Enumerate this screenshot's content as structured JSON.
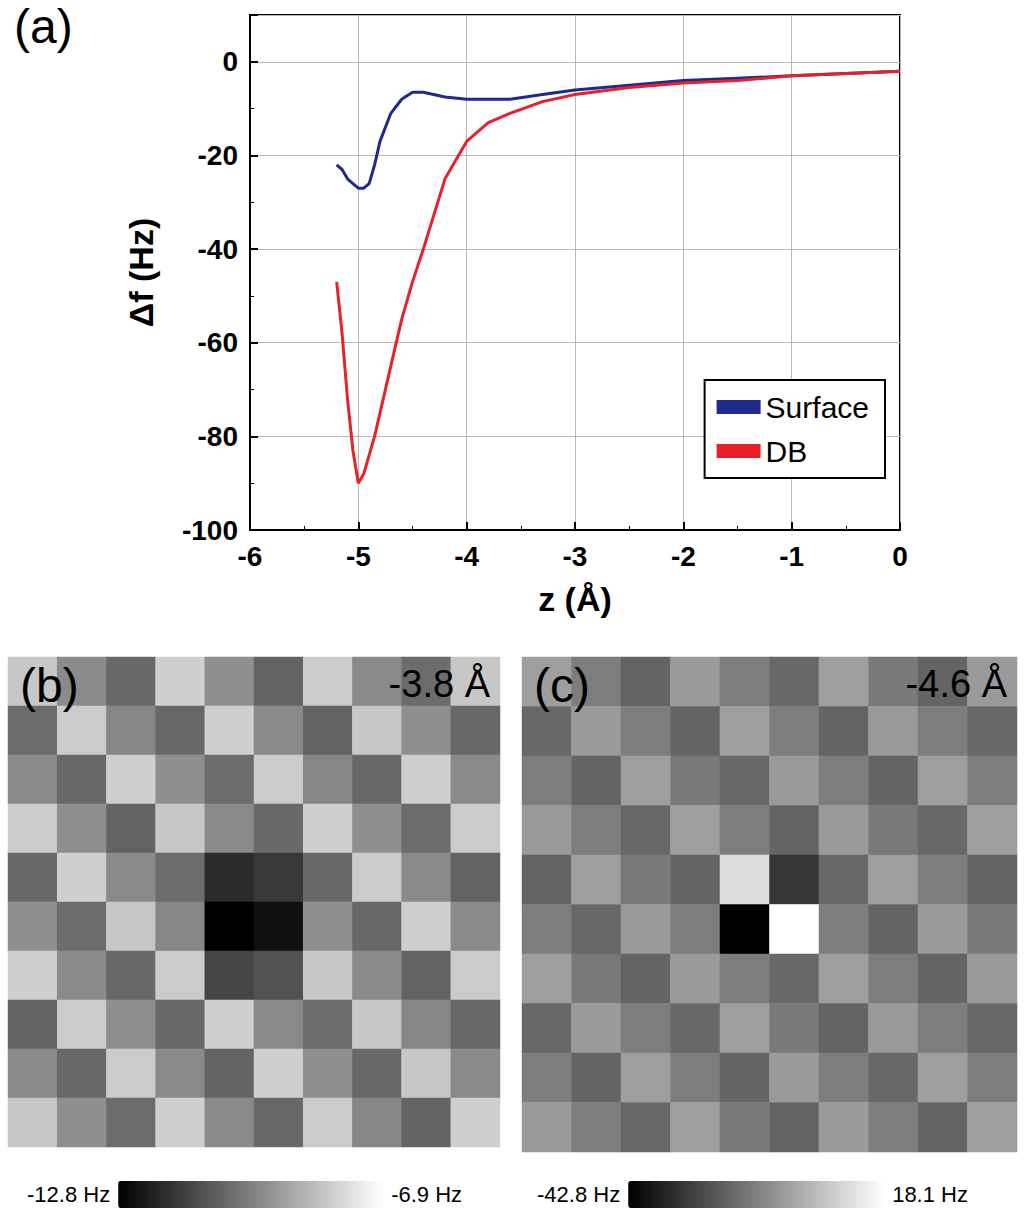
{
  "chart_data": [
    {
      "type": "line",
      "panel": "(a)",
      "x_label": "z (Å)",
      "y_label": "Δf (Hz)",
      "xlim": [
        -6,
        0
      ],
      "xticks": [
        -6,
        -5,
        -4,
        -3,
        -2,
        -1,
        0
      ],
      "ylim": [
        -100,
        10
      ],
      "yticks": [
        -100,
        -80,
        -60,
        -40,
        -20,
        0
      ],
      "grid": true,
      "legend": "lower right",
      "x": [
        0,
        -0.5,
        -1,
        -1.5,
        -2,
        -2.5,
        -3,
        -3.3,
        -3.6,
        -3.8,
        -4.0,
        -4.2,
        -4.4,
        -4.5,
        -4.6,
        -4.7,
        -4.8,
        -4.85,
        -4.9,
        -4.95,
        -5.0,
        -5.05,
        -5.1,
        -5.15,
        -5.2
      ],
      "series": [
        {
          "name": "Surface",
          "color": "#1f2a8c",
          "values": [
            -2,
            -2.5,
            -3,
            -3.5,
            -4,
            -5,
            -6,
            -7,
            -8,
            -8,
            -8,
            -7.5,
            -6.5,
            -6.5,
            -8,
            -11,
            -17,
            -22,
            -26,
            -27,
            -27,
            -26,
            -25,
            -23,
            -22
          ]
        },
        {
          "name": "DB",
          "color": "#e8202a",
          "values": [
            -2,
            -2.5,
            -3,
            -4,
            -4.5,
            -5.5,
            -7,
            -8.5,
            -11,
            -13,
            -17,
            -25,
            -40,
            -47,
            -55,
            -65,
            -75,
            -80,
            -84,
            -88,
            -90,
            -83,
            -72,
            -58,
            -47
          ]
        }
      ]
    },
    {
      "type": "heatmap",
      "panel": "(b)",
      "annotation": "-3.8 Å",
      "tick_labels": false,
      "cells": [
        [
          -8.2,
          -9.6,
          -10.4,
          -8.0,
          -9.5,
          -10.5,
          -8.1,
          -9.6,
          -10.3,
          -8.2
        ],
        [
          -10.3,
          -8.1,
          -9.7,
          -10.4,
          -8.0,
          -9.6,
          -10.5,
          -8.2,
          -9.5,
          -10.4
        ],
        [
          -9.6,
          -10.4,
          -8.0,
          -9.5,
          -10.3,
          -8.1,
          -9.7,
          -10.4,
          -8.0,
          -9.6
        ],
        [
          -8.1,
          -9.5,
          -10.5,
          -8.2,
          -9.6,
          -10.4,
          -8.0,
          -9.5,
          -10.3,
          -8.1
        ],
        [
          -10.4,
          -8.0,
          -9.6,
          -10.3,
          -11.8,
          -11.5,
          -10.4,
          -8.1,
          -9.6,
          -10.5
        ],
        [
          -9.5,
          -10.3,
          -8.2,
          -9.7,
          -12.8,
          -12.4,
          -9.5,
          -10.4,
          -8.0,
          -9.6
        ],
        [
          -8.0,
          -9.6,
          -10.4,
          -8.1,
          -11.2,
          -10.9,
          -8.2,
          -9.6,
          -10.5,
          -8.1
        ],
        [
          -10.5,
          -8.1,
          -9.5,
          -10.4,
          -8.0,
          -9.6,
          -10.3,
          -8.2,
          -9.7,
          -10.4
        ],
        [
          -9.6,
          -10.4,
          -8.1,
          -9.6,
          -10.5,
          -8.0,
          -9.5,
          -10.4,
          -8.2,
          -9.6
        ],
        [
          -8.2,
          -9.5,
          -10.3,
          -8.0,
          -9.6,
          -10.4,
          -8.1,
          -9.7,
          -10.5,
          -8.0
        ]
      ],
      "colorbar": {
        "range": [
          -12.8,
          -6.9
        ],
        "labels": [
          "-12.8 Hz",
          "-6.9 Hz"
        ]
      }
    },
    {
      "type": "heatmap",
      "panel": "(c)",
      "annotation": "-4.6 Å",
      "tick_labels": false,
      "cells": [
        [
          -5,
          -13,
          -19,
          -6,
          -13,
          -18,
          -5,
          -14,
          -19,
          -6
        ],
        [
          -18,
          -6,
          -13,
          -19,
          -5,
          -13,
          -19,
          -6,
          -13,
          -18
        ],
        [
          -13,
          -19,
          -5,
          -14,
          -18,
          -6,
          -13,
          -19,
          -5,
          -13
        ],
        [
          -6,
          -13,
          -18,
          -5,
          -13,
          -19,
          -6,
          -14,
          -18,
          -5
        ],
        [
          -19,
          -5,
          -14,
          -19,
          10,
          -30,
          -18,
          -5,
          -13,
          -19
        ],
        [
          -13,
          -18,
          -6,
          -13,
          -42.8,
          18.1,
          -13,
          -19,
          -6,
          -14
        ],
        [
          -5,
          -14,
          -19,
          -6,
          -13,
          -18,
          -5,
          -13,
          -19,
          -6
        ],
        [
          -18,
          -6,
          -13,
          -18,
          -5,
          -14,
          -19,
          -6,
          -13,
          -18
        ],
        [
          -13,
          -19,
          -5,
          -13,
          -19,
          -6,
          -13,
          -18,
          -5,
          -13
        ],
        [
          -6,
          -13,
          -18,
          -5,
          -14,
          -19,
          -6,
          -13,
          -19,
          -5
        ]
      ],
      "colorbar": {
        "range": [
          -42.8,
          18.1
        ],
        "labels": [
          "-42.8 Hz",
          "18.1 Hz"
        ]
      }
    }
  ]
}
